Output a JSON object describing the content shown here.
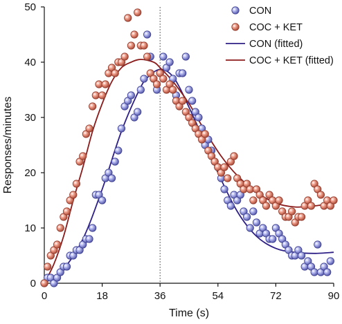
{
  "chart_data": {
    "type": "scatter",
    "title": "",
    "xlabel": "Time (s)",
    "ylabel": "Responses/minutes",
    "xlim": [
      0,
      90
    ],
    "ylim": [
      0,
      50
    ],
    "xticks": [
      0,
      18,
      36,
      54,
      72,
      90
    ],
    "yticks": [
      0,
      10,
      20,
      30,
      40,
      50
    ],
    "reference_line": {
      "x": 36,
      "style": "dotted"
    },
    "grid": false,
    "legend_position": "top-right",
    "colors": {
      "con_marker": "#8a8fd6",
      "con_marker_edge": "#3d3f8f",
      "cocket_marker": "#e0826f",
      "cocket_marker_edge": "#8f3a2c",
      "con_line": "#2d1f86",
      "cocket_line": "#8b1a1a"
    },
    "series": [
      {
        "name": "CON",
        "kind": "points",
        "points": [
          [
            0,
            0
          ],
          [
            1,
            1
          ],
          [
            2,
            1
          ],
          [
            3,
            0
          ],
          [
            4,
            1
          ],
          [
            5,
            2
          ],
          [
            6,
            3
          ],
          [
            7,
            3
          ],
          [
            8,
            5
          ],
          [
            9,
            5
          ],
          [
            10,
            6
          ],
          [
            11,
            6
          ],
          [
            12,
            7
          ],
          [
            13,
            8
          ],
          [
            14,
            8
          ],
          [
            15,
            10
          ],
          [
            16,
            16
          ],
          [
            17,
            16
          ],
          [
            18,
            15
          ],
          [
            19,
            19
          ],
          [
            20,
            20
          ],
          [
            21,
            19
          ],
          [
            22,
            22
          ],
          [
            23,
            24
          ],
          [
            24,
            28
          ],
          [
            25,
            32
          ],
          [
            26,
            33
          ],
          [
            27,
            34
          ],
          [
            28,
            30
          ],
          [
            29,
            31
          ],
          [
            30,
            35
          ],
          [
            31,
            37
          ],
          [
            32,
            45
          ],
          [
            33,
            41
          ],
          [
            34,
            37
          ],
          [
            35,
            35
          ],
          [
            36,
            38
          ],
          [
            37,
            41
          ],
          [
            38,
            39
          ],
          [
            39,
            40
          ],
          [
            40,
            37
          ],
          [
            41,
            34
          ],
          [
            42,
            38
          ],
          [
            43,
            38
          ],
          [
            44,
            41
          ],
          [
            45,
            35
          ],
          [
            46,
            33
          ],
          [
            47,
            31
          ],
          [
            48,
            30
          ],
          [
            49,
            28
          ],
          [
            50,
            25
          ],
          [
            51,
            26
          ],
          [
            52,
            24
          ],
          [
            53,
            22
          ],
          [
            54,
            21
          ],
          [
            55,
            19
          ],
          [
            56,
            17
          ],
          [
            57,
            15
          ],
          [
            58,
            14
          ],
          [
            59,
            16
          ],
          [
            60,
            15
          ],
          [
            61,
            16
          ],
          [
            62,
            13
          ],
          [
            63,
            12
          ],
          [
            64,
            10
          ],
          [
            65,
            13
          ],
          [
            66,
            11
          ],
          [
            67,
            9
          ],
          [
            68,
            10
          ],
          [
            69,
            9
          ],
          [
            70,
            8
          ],
          [
            71,
            8
          ],
          [
            72,
            10
          ],
          [
            73,
            9
          ],
          [
            74,
            8
          ],
          [
            75,
            7
          ],
          [
            76,
            6
          ],
          [
            77,
            5
          ],
          [
            78,
            5
          ],
          [
            79,
            6
          ],
          [
            80,
            5
          ],
          [
            81,
            3
          ],
          [
            82,
            4
          ],
          [
            83,
            3
          ],
          [
            84,
            2
          ],
          [
            85,
            7
          ],
          [
            86,
            2
          ],
          [
            87,
            3
          ],
          [
            88,
            2
          ],
          [
            89,
            4
          ]
        ]
      },
      {
        "name": "COC + KET",
        "kind": "points",
        "points": [
          [
            0,
            0
          ],
          [
            1,
            3
          ],
          [
            2,
            5
          ],
          [
            3,
            6
          ],
          [
            4,
            7
          ],
          [
            5,
            10
          ],
          [
            6,
            12
          ],
          [
            7,
            13
          ],
          [
            8,
            15
          ],
          [
            9,
            16
          ],
          [
            10,
            18
          ],
          [
            11,
            22
          ],
          [
            12,
            23
          ],
          [
            13,
            27
          ],
          [
            14,
            28
          ],
          [
            15,
            32
          ],
          [
            16,
            34
          ],
          [
            17,
            36
          ],
          [
            18,
            34
          ],
          [
            19,
            36
          ],
          [
            20,
            38
          ],
          [
            21,
            39
          ],
          [
            22,
            38
          ],
          [
            23,
            40
          ],
          [
            24,
            40
          ],
          [
            25,
            41
          ],
          [
            26,
            48
          ],
          [
            27,
            43
          ],
          [
            28,
            45
          ],
          [
            29,
            49
          ],
          [
            30,
            43
          ],
          [
            31,
            43
          ],
          [
            32,
            41
          ],
          [
            33,
            38
          ],
          [
            34,
            37
          ],
          [
            35,
            36
          ],
          [
            36,
            38
          ],
          [
            37,
            37
          ],
          [
            38,
            35
          ],
          [
            39,
            36
          ],
          [
            40,
            35
          ],
          [
            41,
            33
          ],
          [
            42,
            32
          ],
          [
            43,
            33
          ],
          [
            44,
            31
          ],
          [
            45,
            30
          ],
          [
            46,
            29
          ],
          [
            47,
            28
          ],
          [
            48,
            27
          ],
          [
            49,
            26
          ],
          [
            50,
            27
          ],
          [
            51,
            24
          ],
          [
            52,
            23
          ],
          [
            53,
            22
          ],
          [
            54,
            21
          ],
          [
            55,
            20
          ],
          [
            56,
            21
          ],
          [
            57,
            19
          ],
          [
            58,
            22
          ],
          [
            59,
            23
          ],
          [
            60,
            19
          ],
          [
            61,
            18
          ],
          [
            62,
            17
          ],
          [
            63,
            18
          ],
          [
            64,
            17
          ],
          [
            65,
            15
          ],
          [
            66,
            17
          ],
          [
            67,
            16
          ],
          [
            68,
            15
          ],
          [
            69,
            14
          ],
          [
            70,
            16
          ],
          [
            71,
            15
          ],
          [
            72,
            14
          ],
          [
            73,
            15
          ],
          [
            74,
            13
          ],
          [
            75,
            12
          ],
          [
            76,
            12
          ],
          [
            77,
            13
          ],
          [
            78,
            11
          ],
          [
            79,
            12
          ],
          [
            80,
            12
          ],
          [
            81,
            14
          ],
          [
            82,
            15
          ],
          [
            83,
            14
          ],
          [
            84,
            18
          ],
          [
            85,
            17
          ],
          [
            86,
            16
          ],
          [
            87,
            14
          ],
          [
            88,
            15
          ],
          [
            89,
            14
          ],
          [
            90,
            15
          ]
        ]
      },
      {
        "name": "CON (fitted)",
        "kind": "line",
        "points": [
          [
            0,
            0
          ],
          [
            6,
            2.6
          ],
          [
            12,
            8
          ],
          [
            18,
            17
          ],
          [
            24,
            27.5
          ],
          [
            30,
            35.5
          ],
          [
            33,
            37.7
          ],
          [
            36,
            38.7
          ],
          [
            39,
            38
          ],
          [
            42,
            35.5
          ],
          [
            48,
            28
          ],
          [
            54,
            20
          ],
          [
            60,
            13
          ],
          [
            66,
            8.5
          ],
          [
            72,
            6.3
          ],
          [
            78,
            5.6
          ],
          [
            84,
            5.4
          ],
          [
            90,
            5.6
          ]
        ]
      },
      {
        "name": "COC + KET (fitted)",
        "kind": "line",
        "points": [
          [
            0,
            0
          ],
          [
            3,
            3.5
          ],
          [
            6,
            8.5
          ],
          [
            9,
            15
          ],
          [
            12,
            21
          ],
          [
            15,
            27.5
          ],
          [
            18,
            32.5
          ],
          [
            21,
            36.5
          ],
          [
            24,
            39
          ],
          [
            27,
            40
          ],
          [
            30,
            40.5
          ],
          [
            34,
            40
          ],
          [
            36,
            39
          ],
          [
            40,
            36.5
          ],
          [
            45,
            32.5
          ],
          [
            50,
            27.5
          ],
          [
            55,
            23
          ],
          [
            60,
            19.5
          ],
          [
            66,
            16.5
          ],
          [
            72,
            14.5
          ],
          [
            78,
            13.8
          ],
          [
            84,
            14
          ],
          [
            90,
            14.5
          ]
        ]
      }
    ]
  }
}
